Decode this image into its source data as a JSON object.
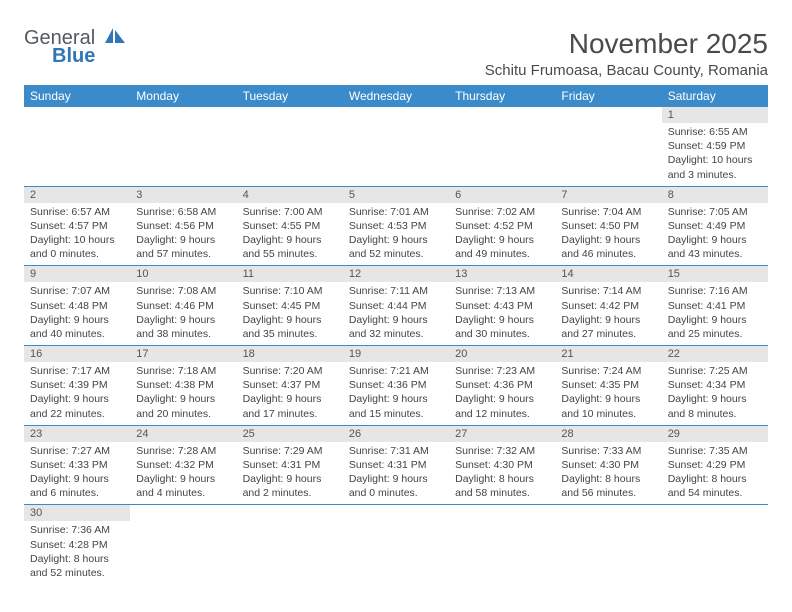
{
  "logo": {
    "text_gray": "Genera",
    "text_inline_trail": "l",
    "text_blue": "Blue"
  },
  "title": "November 2025",
  "location": "Schitu Frumoasa, Bacau County, Romania",
  "day_headers": [
    "Sunday",
    "Monday",
    "Tuesday",
    "Wednesday",
    "Thursday",
    "Friday",
    "Saturday"
  ],
  "colors": {
    "header_bg": "#3b8bca",
    "header_text": "#ffffff",
    "row_divider": "#3b8bca",
    "daynum_bg": "#e6e6e6",
    "body_text": "#444444",
    "title_text": "#4a4a4a",
    "logo_gray": "#555a5f",
    "logo_blue": "#2e77b8",
    "page_bg": "#ffffff"
  },
  "typography": {
    "title_fontsize": 28,
    "location_fontsize": 15,
    "header_fontsize": 12,
    "daynum_fontsize": 11,
    "cell_fontsize": 10.5,
    "logo_fontsize": 20
  },
  "weeks": [
    [
      {
        "n": "",
        "sr": "",
        "ss": "",
        "dl": ""
      },
      {
        "n": "",
        "sr": "",
        "ss": "",
        "dl": ""
      },
      {
        "n": "",
        "sr": "",
        "ss": "",
        "dl": ""
      },
      {
        "n": "",
        "sr": "",
        "ss": "",
        "dl": ""
      },
      {
        "n": "",
        "sr": "",
        "ss": "",
        "dl": ""
      },
      {
        "n": "",
        "sr": "",
        "ss": "",
        "dl": ""
      },
      {
        "n": "1",
        "sr": "Sunrise: 6:55 AM",
        "ss": "Sunset: 4:59 PM",
        "dl": "Daylight: 10 hours and 3 minutes."
      }
    ],
    [
      {
        "n": "2",
        "sr": "Sunrise: 6:57 AM",
        "ss": "Sunset: 4:57 PM",
        "dl": "Daylight: 10 hours and 0 minutes."
      },
      {
        "n": "3",
        "sr": "Sunrise: 6:58 AM",
        "ss": "Sunset: 4:56 PM",
        "dl": "Daylight: 9 hours and 57 minutes."
      },
      {
        "n": "4",
        "sr": "Sunrise: 7:00 AM",
        "ss": "Sunset: 4:55 PM",
        "dl": "Daylight: 9 hours and 55 minutes."
      },
      {
        "n": "5",
        "sr": "Sunrise: 7:01 AM",
        "ss": "Sunset: 4:53 PM",
        "dl": "Daylight: 9 hours and 52 minutes."
      },
      {
        "n": "6",
        "sr": "Sunrise: 7:02 AM",
        "ss": "Sunset: 4:52 PM",
        "dl": "Daylight: 9 hours and 49 minutes."
      },
      {
        "n": "7",
        "sr": "Sunrise: 7:04 AM",
        "ss": "Sunset: 4:50 PM",
        "dl": "Daylight: 9 hours and 46 minutes."
      },
      {
        "n": "8",
        "sr": "Sunrise: 7:05 AM",
        "ss": "Sunset: 4:49 PM",
        "dl": "Daylight: 9 hours and 43 minutes."
      }
    ],
    [
      {
        "n": "9",
        "sr": "Sunrise: 7:07 AM",
        "ss": "Sunset: 4:48 PM",
        "dl": "Daylight: 9 hours and 40 minutes."
      },
      {
        "n": "10",
        "sr": "Sunrise: 7:08 AM",
        "ss": "Sunset: 4:46 PM",
        "dl": "Daylight: 9 hours and 38 minutes."
      },
      {
        "n": "11",
        "sr": "Sunrise: 7:10 AM",
        "ss": "Sunset: 4:45 PM",
        "dl": "Daylight: 9 hours and 35 minutes."
      },
      {
        "n": "12",
        "sr": "Sunrise: 7:11 AM",
        "ss": "Sunset: 4:44 PM",
        "dl": "Daylight: 9 hours and 32 minutes."
      },
      {
        "n": "13",
        "sr": "Sunrise: 7:13 AM",
        "ss": "Sunset: 4:43 PM",
        "dl": "Daylight: 9 hours and 30 minutes."
      },
      {
        "n": "14",
        "sr": "Sunrise: 7:14 AM",
        "ss": "Sunset: 4:42 PM",
        "dl": "Daylight: 9 hours and 27 minutes."
      },
      {
        "n": "15",
        "sr": "Sunrise: 7:16 AM",
        "ss": "Sunset: 4:41 PM",
        "dl": "Daylight: 9 hours and 25 minutes."
      }
    ],
    [
      {
        "n": "16",
        "sr": "Sunrise: 7:17 AM",
        "ss": "Sunset: 4:39 PM",
        "dl": "Daylight: 9 hours and 22 minutes."
      },
      {
        "n": "17",
        "sr": "Sunrise: 7:18 AM",
        "ss": "Sunset: 4:38 PM",
        "dl": "Daylight: 9 hours and 20 minutes."
      },
      {
        "n": "18",
        "sr": "Sunrise: 7:20 AM",
        "ss": "Sunset: 4:37 PM",
        "dl": "Daylight: 9 hours and 17 minutes."
      },
      {
        "n": "19",
        "sr": "Sunrise: 7:21 AM",
        "ss": "Sunset: 4:36 PM",
        "dl": "Daylight: 9 hours and 15 minutes."
      },
      {
        "n": "20",
        "sr": "Sunrise: 7:23 AM",
        "ss": "Sunset: 4:36 PM",
        "dl": "Daylight: 9 hours and 12 minutes."
      },
      {
        "n": "21",
        "sr": "Sunrise: 7:24 AM",
        "ss": "Sunset: 4:35 PM",
        "dl": "Daylight: 9 hours and 10 minutes."
      },
      {
        "n": "22",
        "sr": "Sunrise: 7:25 AM",
        "ss": "Sunset: 4:34 PM",
        "dl": "Daylight: 9 hours and 8 minutes."
      }
    ],
    [
      {
        "n": "23",
        "sr": "Sunrise: 7:27 AM",
        "ss": "Sunset: 4:33 PM",
        "dl": "Daylight: 9 hours and 6 minutes."
      },
      {
        "n": "24",
        "sr": "Sunrise: 7:28 AM",
        "ss": "Sunset: 4:32 PM",
        "dl": "Daylight: 9 hours and 4 minutes."
      },
      {
        "n": "25",
        "sr": "Sunrise: 7:29 AM",
        "ss": "Sunset: 4:31 PM",
        "dl": "Daylight: 9 hours and 2 minutes."
      },
      {
        "n": "26",
        "sr": "Sunrise: 7:31 AM",
        "ss": "Sunset: 4:31 PM",
        "dl": "Daylight: 9 hours and 0 minutes."
      },
      {
        "n": "27",
        "sr": "Sunrise: 7:32 AM",
        "ss": "Sunset: 4:30 PM",
        "dl": "Daylight: 8 hours and 58 minutes."
      },
      {
        "n": "28",
        "sr": "Sunrise: 7:33 AM",
        "ss": "Sunset: 4:30 PM",
        "dl": "Daylight: 8 hours and 56 minutes."
      },
      {
        "n": "29",
        "sr": "Sunrise: 7:35 AM",
        "ss": "Sunset: 4:29 PM",
        "dl": "Daylight: 8 hours and 54 minutes."
      }
    ],
    [
      {
        "n": "30",
        "sr": "Sunrise: 7:36 AM",
        "ss": "Sunset: 4:28 PM",
        "dl": "Daylight: 8 hours and 52 minutes."
      },
      {
        "n": "",
        "sr": "",
        "ss": "",
        "dl": ""
      },
      {
        "n": "",
        "sr": "",
        "ss": "",
        "dl": ""
      },
      {
        "n": "",
        "sr": "",
        "ss": "",
        "dl": ""
      },
      {
        "n": "",
        "sr": "",
        "ss": "",
        "dl": ""
      },
      {
        "n": "",
        "sr": "",
        "ss": "",
        "dl": ""
      },
      {
        "n": "",
        "sr": "",
        "ss": "",
        "dl": ""
      }
    ]
  ]
}
